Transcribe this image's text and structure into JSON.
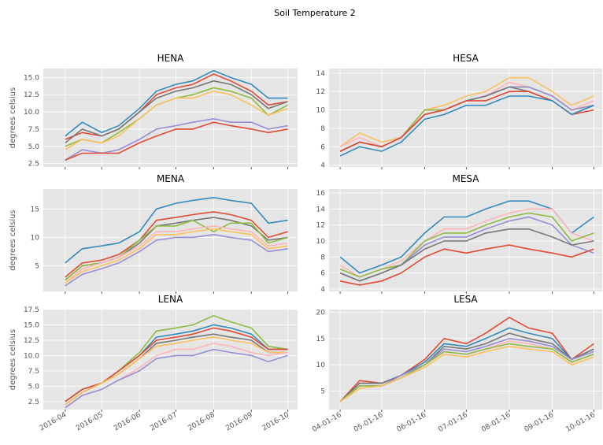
{
  "title": "Soil Temperature 2",
  "chart_data": [
    {
      "type": "line",
      "title": "HENA",
      "y_label": "degrees celsius",
      "x": [
        "2016-04-01",
        "2016-04-15",
        "2016-05-01",
        "2016-05-15",
        "2016-06-01",
        "2016-06-15",
        "2016-07-01",
        "2016-07-15",
        "2016-08-01",
        "2016-08-15",
        "2016-09-01",
        "2016-09-15",
        "2016-10-01"
      ],
      "xlim": [
        "2016-03-14",
        "2016-10-09"
      ],
      "xticks": [
        "2016-04-01",
        "2016-05-01",
        "2016-06-01",
        "2016-07-01",
        "2016-08-01",
        "2016-09-01",
        "2016-10-01"
      ],
      "ylim": [
        2,
        16.3
      ],
      "yticks": [
        {
          "value": 2.5,
          "label": "2.5"
        },
        {
          "value": 5,
          "label": "5.0"
        },
        {
          "value": 7.5,
          "label": "7.5"
        },
        {
          "value": 10,
          "label": "10.0"
        },
        {
          "value": 12.5,
          "label": "12.5"
        },
        {
          "value": 15,
          "label": "15.0"
        }
      ],
      "grid": true,
      "series": [
        {
          "color": "#348ABD",
          "values": [
            6.5,
            8.5,
            7,
            8,
            10.5,
            13,
            14,
            14.5,
            16,
            15,
            14,
            12,
            12
          ]
        },
        {
          "color": "#E24A33",
          "values": [
            6,
            7,
            6.5,
            7.5,
            10,
            12.5,
            13.5,
            14,
            15.5,
            14.5,
            13,
            11,
            11.5
          ]
        },
        {
          "color": "#777777",
          "values": [
            5.5,
            7.5,
            6.5,
            7.5,
            10,
            12,
            13,
            13.5,
            14.5,
            14,
            12.5,
            10.5,
            11.5
          ]
        },
        {
          "color": "#8EBA42",
          "values": [
            5,
            6,
            5.5,
            7,
            9,
            11,
            12,
            12.5,
            13.5,
            13,
            12,
            9.5,
            11
          ]
        },
        {
          "color": "#FBC15E",
          "values": [
            4.5,
            6,
            5.5,
            6.5,
            9,
            11,
            12,
            12,
            13,
            12.5,
            11,
            9.5,
            10.5
          ]
        },
        {
          "color": "#988ED5",
          "values": [
            3,
            4.5,
            4,
            4.5,
            6,
            7.5,
            8,
            8.5,
            9,
            8.5,
            8.5,
            7.5,
            8
          ]
        },
        {
          "color": "#E24A33",
          "values": [
            3,
            4,
            4,
            4,
            5.5,
            6.5,
            7.5,
            7.5,
            8.5,
            8,
            7.5,
            7,
            7.5
          ]
        }
      ]
    },
    {
      "type": "line",
      "title": "HESA",
      "y_label": "",
      "x": [
        "2016-04-01",
        "2016-04-15",
        "2016-05-01",
        "2016-05-15",
        "2016-06-01",
        "2016-06-15",
        "2016-07-01",
        "2016-07-15",
        "2016-08-01",
        "2016-08-15",
        "2016-09-01",
        "2016-09-15",
        "2016-10-01"
      ],
      "xlim": [
        "2016-03-24",
        "2016-10-07"
      ],
      "xticks": [
        "2016-04-01",
        "2016-05-01",
        "2016-06-01",
        "2016-07-01",
        "2016-08-01",
        "2016-09-01",
        "2016-10-01"
      ],
      "ylim": [
        3.8,
        14.5
      ],
      "yticks": [
        4,
        6,
        8,
        10,
        12,
        14
      ],
      "grid": true,
      "series": [
        {
          "color": "#FBC15E",
          "values": [
            6,
            7.5,
            6.5,
            7,
            10,
            10.5,
            11.5,
            12,
            13.5,
            13.5,
            12,
            10.5,
            11.5
          ]
        },
        {
          "color": "#FFB5B8",
          "values": [
            6,
            7,
            6,
            7,
            10,
            10,
            11,
            11.5,
            13,
            12.5,
            11.5,
            10,
            11
          ]
        },
        {
          "color": "#8EBA42",
          "values": [
            5.5,
            6.5,
            6,
            7,
            10,
            10,
            11,
            11.5,
            12.5,
            12.5,
            11.5,
            10,
            10.5
          ]
        },
        {
          "color": "#988ED5",
          "values": [
            5.5,
            6.5,
            6,
            7,
            9.5,
            10,
            11,
            11.5,
            12.5,
            12.5,
            11.5,
            10,
            10.5
          ]
        },
        {
          "color": "#777777",
          "values": [
            5.5,
            6.5,
            6,
            7,
            9.5,
            10,
            11,
            11.5,
            12.5,
            12,
            11,
            9.5,
            10.5
          ]
        },
        {
          "color": "#E24A33",
          "values": [
            5.5,
            6.5,
            6,
            7,
            9.5,
            10,
            11,
            11,
            12,
            12,
            11,
            9.5,
            10
          ]
        },
        {
          "color": "#348ABD",
          "values": [
            5,
            6,
            5.5,
            6.5,
            9,
            9.5,
            10.5,
            10.5,
            11.5,
            11.5,
            11,
            9.5,
            10.5
          ]
        }
      ]
    },
    {
      "type": "line",
      "title": "MENA",
      "y_label": "degrees celsius",
      "x": [
        "2016-04-01",
        "2016-04-15",
        "2016-05-01",
        "2016-05-15",
        "2016-06-01",
        "2016-06-15",
        "2016-07-01",
        "2016-07-15",
        "2016-08-01",
        "2016-08-15",
        "2016-09-01",
        "2016-09-15",
        "2016-10-01"
      ],
      "xlim": [
        "2016-03-14",
        "2016-10-09"
      ],
      "xticks": [
        "2016-04-01",
        "2016-05-01",
        "2016-06-01",
        "2016-07-01",
        "2016-08-01",
        "2016-09-01",
        "2016-10-01"
      ],
      "ylim": [
        0.5,
        18.5
      ],
      "yticks": [
        5,
        10,
        15
      ],
      "grid": true,
      "series": [
        {
          "color": "#348ABD",
          "values": [
            5.5,
            8,
            8.5,
            9,
            11,
            15,
            16,
            16.5,
            17,
            16.5,
            16,
            12.5,
            13
          ]
        },
        {
          "color": "#E24A33",
          "values": [
            3,
            5.5,
            6,
            7,
            9.5,
            13,
            13.5,
            14,
            14.5,
            14,
            13,
            10,
            11
          ]
        },
        {
          "color": "#777777",
          "values": [
            2.5,
            5,
            5.5,
            6.5,
            9,
            12,
            12.5,
            13,
            13.5,
            13,
            12,
            9.5,
            10
          ]
        },
        {
          "color": "#8EBA42",
          "values": [
            2.5,
            5,
            5.5,
            6.5,
            9.5,
            12,
            12,
            13,
            11,
            12.5,
            12.5,
            9,
            10
          ]
        },
        {
          "color": "#FFB5B8",
          "values": [
            2,
            4.5,
            5.5,
            6.5,
            8.5,
            11,
            11,
            11.5,
            12,
            11.5,
            11,
            8.5,
            9
          ]
        },
        {
          "color": "#FBC15E",
          "values": [
            2,
            4,
            5,
            6,
            8,
            10.5,
            10.5,
            11,
            11.5,
            11,
            10.5,
            8,
            8.5
          ]
        },
        {
          "color": "#988ED5",
          "values": [
            1.5,
            3.5,
            4.5,
            5.5,
            7.5,
            9.5,
            10,
            10,
            10.5,
            10,
            9.5,
            7.5,
            8
          ]
        }
      ]
    },
    {
      "type": "line",
      "title": "MESA",
      "y_label": "",
      "x": [
        "2016-04-01",
        "2016-04-15",
        "2016-05-01",
        "2016-05-15",
        "2016-06-01",
        "2016-06-15",
        "2016-07-01",
        "2016-07-15",
        "2016-08-01",
        "2016-08-15",
        "2016-09-01",
        "2016-09-15",
        "2016-10-01"
      ],
      "xlim": [
        "2016-03-24",
        "2016-10-07"
      ],
      "xticks": [
        "2016-04-01",
        "2016-05-01",
        "2016-06-01",
        "2016-07-01",
        "2016-08-01",
        "2016-09-01",
        "2016-10-01"
      ],
      "ylim": [
        3.7,
        16.5
      ],
      "yticks": [
        4,
        6,
        8,
        10,
        12,
        14,
        16
      ],
      "grid": true,
      "series": [
        {
          "color": "#348ABD",
          "values": [
            8,
            6,
            7,
            8,
            11,
            13,
            13,
            14,
            15,
            15,
            14,
            11,
            13
          ]
        },
        {
          "color": "#FFB5B8",
          "values": [
            7,
            5.5,
            6.5,
            7.5,
            10,
            11.5,
            11.5,
            12.5,
            13.5,
            14,
            14,
            11,
            10
          ]
        },
        {
          "color": "#8EBA42",
          "values": [
            6.5,
            5.5,
            6.5,
            7,
            10,
            11,
            11,
            12,
            13,
            13.5,
            13,
            10,
            11
          ]
        },
        {
          "color": "#988ED5",
          "values": [
            6,
            5,
            6,
            7,
            9.5,
            10.5,
            10.5,
            11.5,
            12.5,
            13,
            12,
            9.5,
            8.5
          ]
        },
        {
          "color": "#777777",
          "values": [
            6,
            5,
            6,
            7,
            9,
            10,
            10,
            11,
            11.5,
            11.5,
            10.5,
            9.5,
            10
          ]
        },
        {
          "color": "#E24A33",
          "values": [
            5,
            4.5,
            5,
            6,
            8,
            9,
            8.5,
            9,
            9.5,
            9,
            8.5,
            8,
            9
          ]
        }
      ]
    },
    {
      "type": "line",
      "title": "LENA",
      "y_label": "degrees celsius",
      "x": [
        "2016-04-01",
        "2016-04-15",
        "2016-05-01",
        "2016-05-15",
        "2016-06-01",
        "2016-06-15",
        "2016-07-01",
        "2016-07-15",
        "2016-08-01",
        "2016-08-15",
        "2016-09-01",
        "2016-09-15",
        "2016-10-01"
      ],
      "xlim": [
        "2016-03-14",
        "2016-10-09"
      ],
      "xticks": [
        {
          "value": "2016-04-01",
          "label": "2016-04"
        },
        {
          "value": "2016-05-01",
          "label": "2016-05"
        },
        {
          "value": "2016-06-01",
          "label": "2016-06"
        },
        {
          "value": "2016-07-01",
          "label": "2016-07"
        },
        {
          "value": "2016-08-01",
          "label": "2016-08"
        },
        {
          "value": "2016-09-01",
          "label": "2016-09"
        },
        {
          "value": "2016-10-01",
          "label": "2016-10"
        }
      ],
      "ylim": [
        1.2,
        17.5
      ],
      "yticks": [
        {
          "value": 2.5,
          "label": "2.5"
        },
        {
          "value": 5,
          "label": "5.0"
        },
        {
          "value": 7.5,
          "label": "7.5"
        },
        {
          "value": 10,
          "label": "10.0"
        },
        {
          "value": 12.5,
          "label": "12.5"
        },
        {
          "value": 15,
          "label": "15.0"
        },
        {
          "value": 17.5,
          "label": "17.5"
        }
      ],
      "grid": true,
      "series": [
        {
          "color": "#8EBA42",
          "values": [
            2.5,
            4.5,
            5.5,
            7.5,
            10.5,
            14,
            14.5,
            15,
            16.5,
            15.5,
            14.5,
            11.5,
            11
          ]
        },
        {
          "color": "#348ABD",
          "values": [
            2.5,
            4.5,
            5.5,
            7.5,
            10,
            13,
            13.5,
            14,
            15,
            14.5,
            13.5,
            11,
            11
          ]
        },
        {
          "color": "#E24A33",
          "values": [
            2.5,
            4.5,
            5.5,
            7.5,
            10,
            12.5,
            13,
            13.5,
            14.5,
            14,
            13,
            11,
            11
          ]
        },
        {
          "color": "#777777",
          "values": [
            2,
            4,
            5.5,
            7,
            9.5,
            12,
            12.5,
            13,
            13.5,
            13,
            12.5,
            10.5,
            10.5
          ]
        },
        {
          "color": "#FBC15E",
          "values": [
            2,
            4,
            5.5,
            7,
            9.5,
            11.5,
            12,
            12.5,
            13,
            12.5,
            12,
            10.5,
            10.5
          ]
        },
        {
          "color": "#FFB5B8",
          "values": [
            1.5,
            3.5,
            4.5,
            6,
            8,
            10,
            11,
            11,
            12,
            11.5,
            10.5,
            10,
            10.5
          ]
        },
        {
          "color": "#988ED5",
          "values": [
            1.5,
            3.5,
            4.5,
            6,
            7.5,
            9.5,
            10,
            10,
            11,
            10.5,
            10,
            9,
            10
          ]
        }
      ]
    },
    {
      "type": "line",
      "title": "LESA",
      "y_label": "",
      "x": [
        "2016-04-01",
        "2016-04-15",
        "2016-05-01",
        "2016-05-15",
        "2016-06-01",
        "2016-06-15",
        "2016-07-01",
        "2016-07-15",
        "2016-08-01",
        "2016-08-15",
        "2016-09-01",
        "2016-09-15",
        "2016-10-01"
      ],
      "xlim": [
        "2016-03-24",
        "2016-10-07"
      ],
      "xticks": [
        {
          "value": "2016-04-01",
          "label": "04-01-16"
        },
        {
          "value": "2016-05-01",
          "label": "05-01-16"
        },
        {
          "value": "2016-06-01",
          "label": "06-01-16"
        },
        {
          "value": "2016-07-01",
          "label": "07-01-16"
        },
        {
          "value": "2016-08-01",
          "label": "08-01-16"
        },
        {
          "value": "2016-09-01",
          "label": "09-01-16"
        },
        {
          "value": "2016-10-01",
          "label": "10-01-16"
        }
      ],
      "ylim": [
        1.5,
        20.5
      ],
      "yticks": [
        5,
        10,
        15,
        20
      ],
      "grid": true,
      "series": [
        {
          "color": "#E24A33",
          "values": [
            3,
            7,
            6.5,
            8,
            11,
            15,
            14,
            16,
            19,
            17,
            16,
            11,
            14
          ]
        },
        {
          "color": "#348ABD",
          "values": [
            3,
            6.5,
            6.5,
            8,
            10.5,
            14,
            13.5,
            15,
            17,
            16,
            15,
            11,
            13
          ]
        },
        {
          "color": "#777777",
          "values": [
            3,
            6.5,
            6.5,
            8,
            10,
            13.5,
            13,
            14,
            16,
            15,
            14,
            11,
            13
          ]
        },
        {
          "color": "#988ED5",
          "values": [
            3,
            6,
            6,
            8,
            10,
            13,
            12.5,
            13.5,
            15,
            14.5,
            13.5,
            11,
            12.5
          ]
        },
        {
          "color": "#FFB5B8",
          "values": [
            3,
            6,
            6,
            7.5,
            10,
            12.5,
            12,
            13,
            14.5,
            14,
            13,
            10.5,
            12
          ]
        },
        {
          "color": "#8EBA42",
          "values": [
            3,
            6,
            6,
            7.5,
            10,
            12.5,
            12,
            13,
            14,
            13.5,
            13,
            10.5,
            12
          ]
        },
        {
          "color": "#FBC15E",
          "values": [
            3,
            5.5,
            6,
            7.5,
            9.5,
            12,
            11.5,
            12.5,
            13.5,
            13,
            12.5,
            10,
            11.5
          ]
        }
      ]
    }
  ]
}
